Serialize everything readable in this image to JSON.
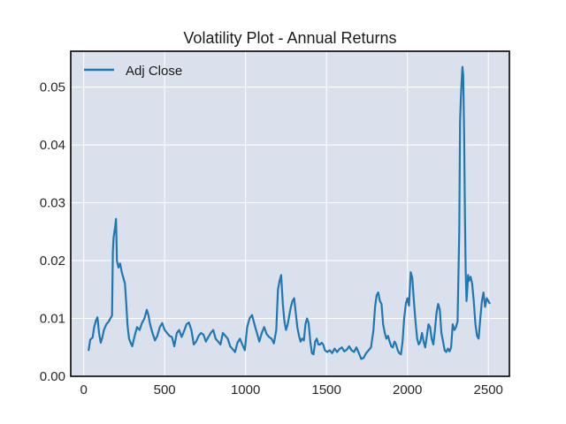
{
  "chart_data": {
    "type": "line",
    "title": "Volatility Plot - Annual Returns",
    "xlabel": "",
    "ylabel": "",
    "xlim": [
      -80,
      2630
    ],
    "ylim": [
      0,
      0.0562
    ],
    "xticks": [
      0,
      500,
      1000,
      1500,
      2000,
      2500
    ],
    "xtick_labels": [
      "0",
      "500",
      "1000",
      "1500",
      "2000",
      "2500"
    ],
    "yticks": [
      0.0,
      0.01,
      0.02,
      0.03,
      0.04,
      0.05
    ],
    "ytick_labels": [
      "0.00",
      "0.01",
      "0.02",
      "0.03",
      "0.04",
      "0.05"
    ],
    "grid": true,
    "legend": {
      "position": "top-left",
      "entries": [
        "Adj Close"
      ]
    },
    "series": [
      {
        "name": "Adj Close",
        "color": "#1f77b4",
        "points": [
          [
            30,
            0.0044
          ],
          [
            40,
            0.0063
          ],
          [
            55,
            0.0067
          ],
          [
            65,
            0.0085
          ],
          [
            75,
            0.0096
          ],
          [
            85,
            0.0102
          ],
          [
            95,
            0.0075
          ],
          [
            105,
            0.0058
          ],
          [
            115,
            0.0067
          ],
          [
            125,
            0.008
          ],
          [
            140,
            0.009
          ],
          [
            155,
            0.0095
          ],
          [
            165,
            0.01
          ],
          [
            175,
            0.0105
          ],
          [
            180,
            0.0215
          ],
          [
            185,
            0.024
          ],
          [
            195,
            0.026
          ],
          [
            200,
            0.0272
          ],
          [
            205,
            0.02
          ],
          [
            215,
            0.0188
          ],
          [
            225,
            0.0195
          ],
          [
            235,
            0.018
          ],
          [
            245,
            0.017
          ],
          [
            255,
            0.016
          ],
          [
            262,
            0.013
          ],
          [
            270,
            0.009
          ],
          [
            280,
            0.0065
          ],
          [
            290,
            0.0058
          ],
          [
            300,
            0.0052
          ],
          [
            315,
            0.007
          ],
          [
            330,
            0.0085
          ],
          [
            345,
            0.008
          ],
          [
            360,
            0.0092
          ],
          [
            375,
            0.01
          ],
          [
            390,
            0.0115
          ],
          [
            400,
            0.0105
          ],
          [
            410,
            0.009
          ],
          [
            425,
            0.0075
          ],
          [
            440,
            0.0062
          ],
          [
            455,
            0.007
          ],
          [
            470,
            0.0085
          ],
          [
            485,
            0.0092
          ],
          [
            500,
            0.008
          ],
          [
            515,
            0.0075
          ],
          [
            530,
            0.007
          ],
          [
            545,
            0.0068
          ],
          [
            560,
            0.0052
          ],
          [
            575,
            0.0075
          ],
          [
            590,
            0.008
          ],
          [
            605,
            0.0068
          ],
          [
            620,
            0.0078
          ],
          [
            635,
            0.009
          ],
          [
            650,
            0.0093
          ],
          [
            665,
            0.008
          ],
          [
            680,
            0.0055
          ],
          [
            695,
            0.006
          ],
          [
            710,
            0.007
          ],
          [
            725,
            0.0075
          ],
          [
            740,
            0.0072
          ],
          [
            755,
            0.006
          ],
          [
            770,
            0.0068
          ],
          [
            785,
            0.0075
          ],
          [
            800,
            0.008
          ],
          [
            815,
            0.0065
          ],
          [
            830,
            0.006
          ],
          [
            845,
            0.0055
          ],
          [
            860,
            0.0075
          ],
          [
            875,
            0.007
          ],
          [
            890,
            0.0065
          ],
          [
            905,
            0.0052
          ],
          [
            920,
            0.0047
          ],
          [
            935,
            0.0042
          ],
          [
            950,
            0.0058
          ],
          [
            965,
            0.0065
          ],
          [
            980,
            0.0055
          ],
          [
            995,
            0.0045
          ],
          [
            1010,
            0.0085
          ],
          [
            1025,
            0.01
          ],
          [
            1040,
            0.0106
          ],
          [
            1055,
            0.009
          ],
          [
            1070,
            0.0075
          ],
          [
            1085,
            0.006
          ],
          [
            1100,
            0.0075
          ],
          [
            1115,
            0.0085
          ],
          [
            1130,
            0.0073
          ],
          [
            1145,
            0.0068
          ],
          [
            1160,
            0.0065
          ],
          [
            1175,
            0.0057
          ],
          [
            1190,
            0.008
          ],
          [
            1200,
            0.015
          ],
          [
            1210,
            0.0165
          ],
          [
            1220,
            0.0175
          ],
          [
            1230,
            0.0125
          ],
          [
            1240,
            0.0095
          ],
          [
            1250,
            0.008
          ],
          [
            1260,
            0.009
          ],
          [
            1270,
            0.0105
          ],
          [
            1280,
            0.012
          ],
          [
            1290,
            0.013
          ],
          [
            1300,
            0.0135
          ],
          [
            1310,
            0.011
          ],
          [
            1320,
            0.0085
          ],
          [
            1330,
            0.007
          ],
          [
            1340,
            0.006
          ],
          [
            1350,
            0.0065
          ],
          [
            1360,
            0.0062
          ],
          [
            1370,
            0.009
          ],
          [
            1380,
            0.01
          ],
          [
            1390,
            0.0092
          ],
          [
            1400,
            0.006
          ],
          [
            1410,
            0.004
          ],
          [
            1420,
            0.0038
          ],
          [
            1430,
            0.006
          ],
          [
            1440,
            0.0065
          ],
          [
            1450,
            0.0055
          ],
          [
            1460,
            0.0055
          ],
          [
            1470,
            0.0058
          ],
          [
            1480,
            0.0055
          ],
          [
            1490,
            0.0045
          ],
          [
            1505,
            0.0042
          ],
          [
            1520,
            0.0045
          ],
          [
            1535,
            0.004
          ],
          [
            1550,
            0.0048
          ],
          [
            1565,
            0.0042
          ],
          [
            1580,
            0.0047
          ],
          [
            1595,
            0.005
          ],
          [
            1610,
            0.0043
          ],
          [
            1625,
            0.0046
          ],
          [
            1640,
            0.0052
          ],
          [
            1655,
            0.0045
          ],
          [
            1670,
            0.0042
          ],
          [
            1685,
            0.005
          ],
          [
            1700,
            0.004
          ],
          [
            1715,
            0.003
          ],
          [
            1730,
            0.0032
          ],
          [
            1745,
            0.004
          ],
          [
            1760,
            0.0045
          ],
          [
            1775,
            0.005
          ],
          [
            1790,
            0.008
          ],
          [
            1800,
            0.012
          ],
          [
            1810,
            0.014
          ],
          [
            1820,
            0.0145
          ],
          [
            1830,
            0.013
          ],
          [
            1840,
            0.0125
          ],
          [
            1850,
            0.009
          ],
          [
            1860,
            0.0075
          ],
          [
            1870,
            0.0065
          ],
          [
            1880,
            0.007
          ],
          [
            1890,
            0.006
          ],
          [
            1900,
            0.0052
          ],
          [
            1910,
            0.005
          ],
          [
            1920,
            0.006
          ],
          [
            1930,
            0.0055
          ],
          [
            1940,
            0.0045
          ],
          [
            1950,
            0.004
          ],
          [
            1960,
            0.0038
          ],
          [
            1970,
            0.006
          ],
          [
            1980,
            0.01
          ],
          [
            1990,
            0.0125
          ],
          [
            2000,
            0.0135
          ],
          [
            2010,
            0.0122
          ],
          [
            2020,
            0.018
          ],
          [
            2030,
            0.017
          ],
          [
            2040,
            0.013
          ],
          [
            2050,
            0.0095
          ],
          [
            2060,
            0.0065
          ],
          [
            2070,
            0.0055
          ],
          [
            2080,
            0.006
          ],
          [
            2090,
            0.0075
          ],
          [
            2100,
            0.006
          ],
          [
            2110,
            0.005
          ],
          [
            2120,
            0.007
          ],
          [
            2130,
            0.009
          ],
          [
            2140,
            0.0085
          ],
          [
            2150,
            0.0065
          ],
          [
            2160,
            0.0055
          ],
          [
            2170,
            0.008
          ],
          [
            2180,
            0.011
          ],
          [
            2190,
            0.0125
          ],
          [
            2200,
            0.0115
          ],
          [
            2210,
            0.0075
          ],
          [
            2220,
            0.006
          ],
          [
            2230,
            0.0045
          ],
          [
            2240,
            0.0042
          ],
          [
            2250,
            0.0048
          ],
          [
            2260,
            0.0043
          ],
          [
            2270,
            0.005
          ],
          [
            2280,
            0.009
          ],
          [
            2290,
            0.008
          ],
          [
            2300,
            0.0085
          ],
          [
            2310,
            0.0095
          ],
          [
            2320,
            0.025
          ],
          [
            2325,
            0.044
          ],
          [
            2330,
            0.048
          ],
          [
            2335,
            0.051
          ],
          [
            2340,
            0.0535
          ],
          [
            2345,
            0.052
          ],
          [
            2350,
            0.042
          ],
          [
            2355,
            0.028
          ],
          [
            2360,
            0.018
          ],
          [
            2365,
            0.013
          ],
          [
            2370,
            0.015
          ],
          [
            2375,
            0.0175
          ],
          [
            2380,
            0.0165
          ],
          [
            2390,
            0.0172
          ],
          [
            2400,
            0.016
          ],
          [
            2410,
            0.013
          ],
          [
            2420,
            0.009
          ],
          [
            2430,
            0.007
          ],
          [
            2440,
            0.0065
          ],
          [
            2450,
            0.01
          ],
          [
            2460,
            0.013
          ],
          [
            2470,
            0.0145
          ],
          [
            2480,
            0.012
          ],
          [
            2490,
            0.0135
          ],
          [
            2500,
            0.013
          ],
          [
            2510,
            0.0125
          ]
        ]
      }
    ]
  }
}
